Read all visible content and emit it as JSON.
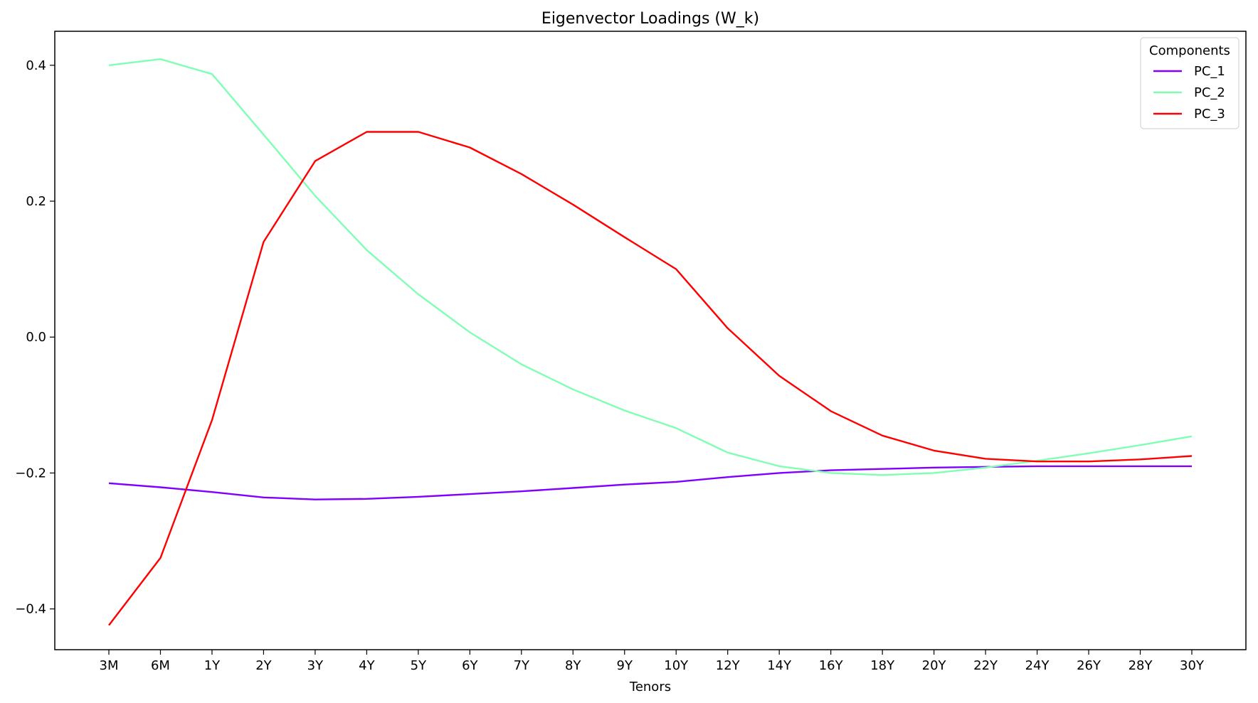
{
  "chart_data": {
    "type": "line",
    "title": "Eigenvector Loadings (W_k)",
    "xlabel": "Tenors",
    "ylabel": "",
    "categories": [
      "3M",
      "6M",
      "1Y",
      "2Y",
      "3Y",
      "4Y",
      "5Y",
      "6Y",
      "7Y",
      "8Y",
      "9Y",
      "10Y",
      "12Y",
      "14Y",
      "16Y",
      "18Y",
      "20Y",
      "22Y",
      "24Y",
      "26Y",
      "28Y",
      "30Y"
    ],
    "ylim": [
      -0.46,
      0.45
    ],
    "yticks": [
      -0.4,
      -0.2,
      0.0,
      0.2,
      0.4
    ],
    "ytick_labels": [
      "−0.4",
      "−0.2",
      "0.0",
      "0.2",
      "0.4"
    ],
    "grid": false,
    "legend": {
      "title": "Components",
      "placement": "top-right"
    },
    "series": [
      {
        "name": "PC_1",
        "color": "#8000ff",
        "values": [
          -0.215,
          -0.221,
          -0.228,
          -0.236,
          -0.239,
          -0.238,
          -0.235,
          -0.231,
          -0.227,
          -0.222,
          -0.217,
          -0.213,
          -0.206,
          -0.2,
          -0.196,
          -0.194,
          -0.192,
          -0.191,
          -0.19,
          -0.19,
          -0.19,
          -0.19
        ]
      },
      {
        "name": "PC_2",
        "color": "#80ffb4",
        "values": [
          0.4,
          0.409,
          0.387,
          0.298,
          0.208,
          0.128,
          0.063,
          0.007,
          -0.04,
          -0.077,
          -0.108,
          -0.134,
          -0.17,
          -0.19,
          -0.2,
          -0.203,
          -0.2,
          -0.192,
          -0.182,
          -0.171,
          -0.159,
          -0.146
        ]
      },
      {
        "name": "PC_3",
        "color": "#ff0000",
        "values": [
          -0.424,
          -0.325,
          -0.122,
          0.14,
          0.259,
          0.302,
          0.302,
          0.279,
          0.24,
          0.195,
          0.147,
          0.1,
          0.013,
          -0.057,
          -0.109,
          -0.145,
          -0.167,
          -0.179,
          -0.183,
          -0.183,
          -0.18,
          -0.175
        ]
      }
    ]
  }
}
